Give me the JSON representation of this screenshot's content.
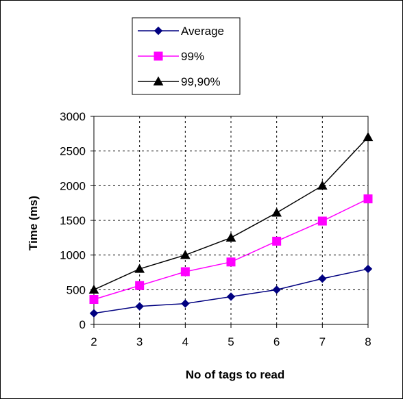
{
  "chart_data": {
    "type": "line",
    "xlabel": "No of tags to read",
    "ylabel": "Time (ms)",
    "x": [
      2,
      3,
      4,
      5,
      6,
      7,
      8
    ],
    "xlim": [
      2,
      8
    ],
    "ylim": [
      0,
      3000
    ],
    "yticks": [
      0,
      500,
      1000,
      1500,
      2000,
      2500,
      3000
    ],
    "grid": true,
    "legend_position": "top",
    "series": [
      {
        "name": "Average",
        "values": [
          160,
          260,
          300,
          400,
          500,
          660,
          800
        ],
        "color": "#000080",
        "marker": "diamond"
      },
      {
        "name": "99%",
        "values": [
          360,
          560,
          760,
          900,
          1200,
          1490,
          1810
        ],
        "color": "#FF00FF",
        "marker": "square"
      },
      {
        "name": "99,90%",
        "values": [
          500,
          800,
          1000,
          1250,
          1610,
          2000,
          2700
        ],
        "color": "#000000",
        "marker": "triangle"
      }
    ]
  }
}
